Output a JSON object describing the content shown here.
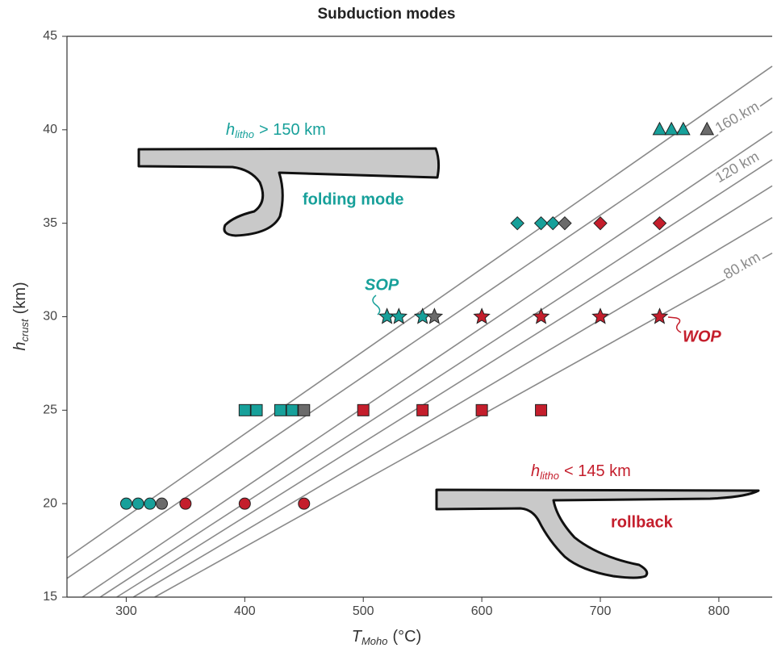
{
  "chart_data": {
    "type": "scatter",
    "title": "Subduction modes",
    "xlabel": {
      "main": "T",
      "sub": "Moho",
      "unit": "(°C)"
    },
    "ylabel": {
      "main": "h",
      "sub": "crust",
      "unit": "(km)"
    },
    "xlim": [
      250,
      845
    ],
    "ylim": [
      15,
      45
    ],
    "xticks": [
      300,
      400,
      500,
      600,
      700,
      800
    ],
    "yticks": [
      15,
      20,
      25,
      30,
      35,
      40,
      45
    ],
    "isolines": {
      "color": "#8a8a8a",
      "lines": [
        {
          "x": [
            250,
            845
          ],
          "y": [
            17.1,
            43.4
          ]
        },
        {
          "x": [
            250,
            845
          ],
          "y": [
            16.0,
            41.7
          ]
        },
        {
          "x": [
            263,
            845
          ],
          "y": [
            15,
            39.9
          ]
        },
        {
          "x": [
            278,
            845
          ],
          "y": [
            15,
            38.4
          ]
        },
        {
          "x": [
            292,
            845
          ],
          "y": [
            15,
            37.0
          ]
        },
        {
          "x": [
            306,
            845
          ],
          "y": [
            15,
            35.3
          ]
        },
        {
          "x": [
            324,
            845
          ],
          "y": [
            15,
            33.4
          ]
        }
      ],
      "labels": [
        "160 km",
        "120 km",
        "80 km"
      ]
    },
    "series": [
      {
        "marker": "circle",
        "color": "#17a09a",
        "x": [
          300,
          310,
          320
        ],
        "y": [
          20,
          20,
          20
        ]
      },
      {
        "marker": "circle",
        "color": "#6b6b6b",
        "x": [
          330
        ],
        "y": [
          20
        ]
      },
      {
        "marker": "circle",
        "color": "#c41e2c",
        "x": [
          350,
          400,
          450
        ],
        "y": [
          20,
          20,
          20
        ]
      },
      {
        "marker": "square",
        "color": "#17a09a",
        "x": [
          400,
          410,
          430,
          440
        ],
        "y": [
          25,
          25,
          25,
          25
        ]
      },
      {
        "marker": "square",
        "color": "#6b6b6b",
        "x": [
          450
        ],
        "y": [
          25
        ]
      },
      {
        "marker": "square",
        "color": "#c41e2c",
        "x": [
          500,
          550,
          600,
          650
        ],
        "y": [
          25,
          25,
          25,
          25
        ]
      },
      {
        "marker": "star",
        "color": "#17a09a",
        "x": [
          520,
          530,
          550
        ],
        "y": [
          30,
          30,
          30
        ]
      },
      {
        "marker": "star",
        "color": "#6b6b6b",
        "x": [
          560
        ],
        "y": [
          30
        ]
      },
      {
        "marker": "star",
        "color": "#c41e2c",
        "x": [
          600,
          650,
          700,
          750
        ],
        "y": [
          30,
          30,
          30,
          30
        ]
      },
      {
        "marker": "diamond",
        "color": "#17a09a",
        "x": [
          630,
          650,
          660
        ],
        "y": [
          35,
          35,
          35
        ]
      },
      {
        "marker": "diamond",
        "color": "#6b6b6b",
        "x": [
          670
        ],
        "y": [
          35
        ]
      },
      {
        "marker": "diamond",
        "color": "#c41e2c",
        "x": [
          700,
          750
        ],
        "y": [
          35,
          35
        ]
      },
      {
        "marker": "triangle",
        "color": "#17a09a",
        "x": [
          750,
          760,
          770
        ],
        "y": [
          40,
          40,
          40
        ]
      },
      {
        "marker": "triangle",
        "color": "#6b6b6b",
        "x": [
          790
        ],
        "y": [
          40
        ]
      }
    ],
    "annotations": [
      {
        "text": "SOP",
        "color": "#17a09a"
      },
      {
        "text": "WOP",
        "color": "#c41e2c"
      },
      {
        "parts": [
          "h",
          "litho",
          "> 150 km"
        ],
        "color": "#17a09a"
      },
      {
        "text": "folding mode",
        "color": "#17a09a"
      },
      {
        "parts": [
          "h",
          "litho",
          "< 145 km"
        ],
        "color": "#c41e2c"
      },
      {
        "text": "rollback",
        "color": "#c41e2c"
      }
    ]
  }
}
